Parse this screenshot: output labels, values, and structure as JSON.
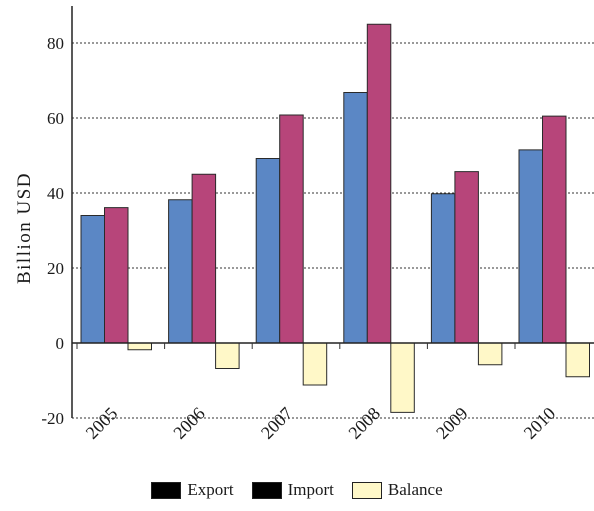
{
  "chart_data": {
    "type": "bar",
    "ylabel": "Billion USD",
    "xlabel": "",
    "title": "",
    "categories": [
      "2005",
      "2006",
      "2007",
      "2008",
      "2009",
      "2010"
    ],
    "series": [
      {
        "name": "Export",
        "color": "#5b87c5",
        "legend_color": "#000000",
        "values": [
          34,
          38.2,
          49.2,
          66.8,
          39.8,
          51.5
        ]
      },
      {
        "name": "Import",
        "color": "#b7457a",
        "legend_color": "#000000",
        "values": [
          36.1,
          45,
          60.8,
          85,
          45.7,
          60.5
        ]
      },
      {
        "name": "Balance",
        "color": "#fff8c8",
        "legend_color": "#fff8c8",
        "values": [
          -1.8,
          -6.8,
          -11.2,
          -18.5,
          -5.8,
          -9
        ]
      }
    ],
    "ylim": [
      -20,
      90
    ],
    "yticks": [
      -20,
      0,
      20,
      40,
      60,
      80
    ],
    "grid": true,
    "legend_position": "bottom"
  }
}
